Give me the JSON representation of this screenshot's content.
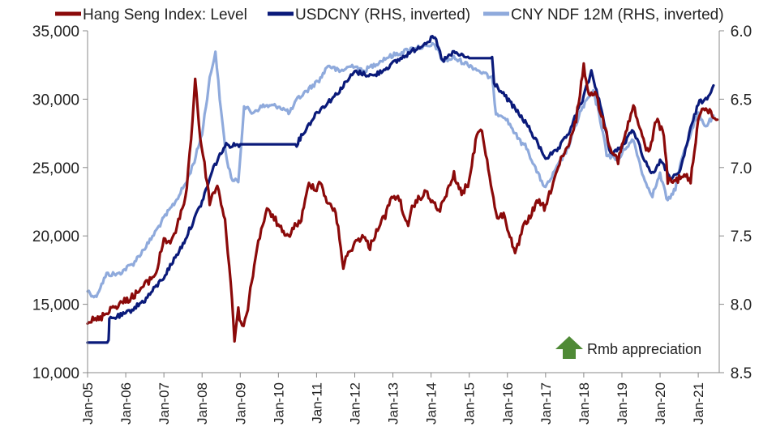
{
  "chart_data": {
    "type": "line",
    "title": "",
    "legend": {
      "placement": "top",
      "entries": [
        {
          "key": "hsi",
          "label": "Hang Seng Index: Level",
          "color": "#8B0A0A"
        },
        {
          "key": "usdcny",
          "label": "USDCNY (RHS, inverted)",
          "color": "#0A1A7A"
        },
        {
          "key": "ndf",
          "label": "CNY NDF 12M (RHS, inverted)",
          "color": "#8FAADC"
        }
      ]
    },
    "x_axis": {
      "range": [
        2005.0,
        2021.55
      ],
      "tick_labels": [
        "Jan-05",
        "Jan-06",
        "Jan-07",
        "Jan-08",
        "Jan-09",
        "Jan-10",
        "Jan-11",
        "Jan-12",
        "Jan-13",
        "Jan-14",
        "Jan-15",
        "Jan-16",
        "Jan-17",
        "Jan-18",
        "Jan-19",
        "Jan-20",
        "Jan-21"
      ]
    },
    "y_left": {
      "range": [
        10000,
        35000
      ],
      "ticks": [
        10000,
        15000,
        20000,
        25000,
        30000,
        35000
      ],
      "tick_labels": [
        "10,000",
        "15,000",
        "20,000",
        "25,000",
        "30,000",
        "35,000"
      ]
    },
    "y_right": {
      "range": [
        8.5,
        6.0
      ],
      "inverted": true,
      "ticks": [
        6.0,
        6.5,
        7.0,
        7.5,
        8.0,
        8.5
      ],
      "tick_labels": [
        "6.0",
        "6.5",
        "7.0",
        "7.5",
        "8.0",
        "8.5"
      ]
    },
    "grid": false,
    "annotation": {
      "label": "Rmb appreciation",
      "icon": "up-arrow-icon",
      "color": "#4F8A36"
    },
    "series": [
      {
        "key": "hsi",
        "name": "Hang Seng Index: Level",
        "axis": "left",
        "x": [
          2005.0,
          2005.3,
          2005.6,
          2005.9,
          2006.2,
          2006.5,
          2006.8,
          2007.0,
          2007.2,
          2007.45,
          2007.6,
          2007.75,
          2007.82,
          2007.95,
          2008.1,
          2008.2,
          2008.4,
          2008.6,
          2008.75,
          2008.85,
          2008.95,
          2009.05,
          2009.2,
          2009.4,
          2009.55,
          2009.7,
          2009.85,
          2010.0,
          2010.2,
          2010.4,
          2010.6,
          2010.8,
          2011.0,
          2011.1,
          2011.3,
          2011.5,
          2011.7,
          2011.8,
          2012.0,
          2012.2,
          2012.4,
          2012.6,
          2012.8,
          2013.0,
          2013.2,
          2013.4,
          2013.5,
          2013.7,
          2013.9,
          2014.0,
          2014.2,
          2014.4,
          2014.6,
          2014.8,
          2015.0,
          2015.2,
          2015.3,
          2015.5,
          2015.7,
          2015.9,
          2016.1,
          2016.2,
          2016.4,
          2016.6,
          2016.8,
          2017.0,
          2017.2,
          2017.4,
          2017.6,
          2017.8,
          2018.0,
          2018.1,
          2018.3,
          2018.5,
          2018.7,
          2018.9,
          2019.1,
          2019.3,
          2019.5,
          2019.7,
          2019.9,
          2020.1,
          2020.2,
          2020.4,
          2020.6,
          2020.8,
          2021.0,
          2021.1,
          2021.3,
          2021.5
        ],
        "values": [
          13800,
          13900,
          14700,
          15100,
          15600,
          16400,
          17300,
          19800,
          19500,
          21600,
          23500,
          28500,
          31500,
          27200,
          24500,
          22500,
          23700,
          21200,
          16500,
          12500,
          14500,
          13200,
          14800,
          18500,
          20500,
          21800,
          21500,
          20800,
          19800,
          20600,
          21200,
          23800,
          23500,
          24000,
          22300,
          21800,
          17800,
          18500,
          19500,
          20000,
          19200,
          20600,
          21500,
          23000,
          22500,
          20500,
          22000,
          22800,
          23200,
          22600,
          21800,
          23000,
          24500,
          23000,
          24000,
          27500,
          28000,
          25000,
          21500,
          21500,
          19800,
          18500,
          20500,
          21500,
          22500,
          22000,
          24000,
          25500,
          26500,
          28500,
          32500,
          30500,
          30500,
          28500,
          26500,
          25500,
          27500,
          29500,
          27500,
          26000,
          28500,
          27500,
          24000,
          24000,
          24500,
          24000,
          28500,
          29500,
          29000,
          28500
        ]
      },
      {
        "key": "usdcny",
        "name": "USDCNY (RHS, inverted)",
        "axis": "right",
        "x": [
          2005.0,
          2005.55,
          2005.57,
          2006.0,
          2006.5,
          2007.0,
          2007.5,
          2008.0,
          2008.3,
          2008.6,
          2009.0,
          2009.5,
          2010.0,
          2010.48,
          2010.6,
          2011.0,
          2011.5,
          2012.0,
          2012.5,
          2013.0,
          2013.5,
          2014.0,
          2014.1,
          2014.3,
          2014.6,
          2015.0,
          2015.3,
          2015.6,
          2015.65,
          2016.0,
          2016.5,
          2017.0,
          2017.3,
          2017.6,
          2018.0,
          2018.2,
          2018.4,
          2018.7,
          2019.0,
          2019.3,
          2019.6,
          2019.8,
          2020.0,
          2020.3,
          2020.5,
          2020.8,
          2021.0,
          2021.2,
          2021.4
        ],
        "values": [
          8.28,
          8.28,
          8.11,
          8.07,
          7.97,
          7.8,
          7.56,
          7.25,
          7.0,
          6.84,
          6.83,
          6.83,
          6.83,
          6.83,
          6.77,
          6.6,
          6.47,
          6.3,
          6.33,
          6.24,
          6.15,
          6.06,
          6.05,
          6.22,
          6.16,
          6.2,
          6.2,
          6.2,
          6.38,
          6.5,
          6.68,
          6.93,
          6.88,
          6.75,
          6.48,
          6.3,
          6.5,
          6.9,
          6.85,
          6.72,
          6.95,
          7.05,
          6.95,
          7.08,
          7.05,
          6.72,
          6.53,
          6.5,
          6.4
        ]
      },
      {
        "key": "ndf",
        "name": "CNY NDF 12M (RHS, inverted)",
        "axis": "right",
        "x": [
          2005.0,
          2005.2,
          2005.5,
          2005.8,
          2006.2,
          2006.6,
          2007.0,
          2007.3,
          2007.6,
          2007.8,
          2008.0,
          2008.2,
          2008.35,
          2008.5,
          2008.65,
          2008.8,
          2008.95,
          2009.1,
          2009.3,
          2009.6,
          2010.0,
          2010.3,
          2010.5,
          2010.7,
          2010.9,
          2011.1,
          2011.3,
          2011.6,
          2011.8,
          2012.0,
          2012.2,
          2012.5,
          2012.8,
          2013.0,
          2013.3,
          2013.6,
          2013.9,
          2014.1,
          2014.3,
          2014.6,
          2015.0,
          2015.3,
          2015.6,
          2015.7,
          2015.9,
          2016.1,
          2016.3,
          2016.5,
          2016.8,
          2017.0,
          2017.3,
          2017.6,
          2017.9,
          2018.1,
          2018.25,
          2018.4,
          2018.6,
          2018.9,
          2019.1,
          2019.3,
          2019.6,
          2019.8,
          2020.0,
          2020.2,
          2020.4,
          2020.6,
          2020.8,
          2021.0,
          2021.2,
          2021.4
        ],
        "values": [
          7.9,
          7.95,
          7.78,
          7.78,
          7.7,
          7.55,
          7.37,
          7.25,
          7.1,
          6.95,
          6.75,
          6.35,
          6.15,
          6.6,
          6.95,
          7.1,
          7.1,
          6.55,
          6.6,
          6.55,
          6.55,
          6.6,
          6.5,
          6.45,
          6.4,
          6.35,
          6.25,
          6.3,
          6.27,
          6.25,
          6.3,
          6.25,
          6.2,
          6.18,
          6.15,
          6.12,
          6.12,
          6.1,
          6.22,
          6.2,
          6.25,
          6.3,
          6.35,
          6.6,
          6.62,
          6.7,
          6.8,
          6.85,
          7.05,
          7.15,
          7.0,
          6.85,
          6.6,
          6.5,
          6.45,
          6.6,
          6.9,
          6.95,
          6.85,
          6.8,
          7.1,
          7.2,
          7.05,
          7.25,
          7.15,
          6.9,
          6.75,
          6.6,
          6.7,
          6.62
        ]
      }
    ]
  }
}
